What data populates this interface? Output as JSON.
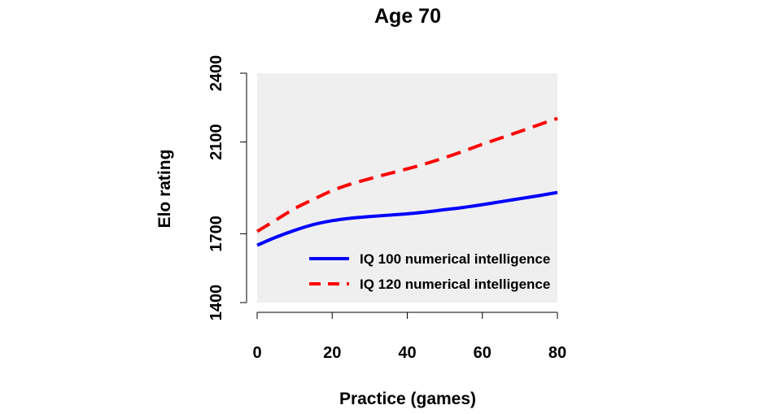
{
  "chart_data": {
    "type": "line",
    "title": "Age 70",
    "xlabel": "Practice (games)",
    "ylabel": "Elo rating",
    "xlim": [
      0,
      80
    ],
    "ylim": [
      1400,
      2400
    ],
    "xticks": [
      0,
      20,
      40,
      60,
      80
    ],
    "yticks": [
      1400,
      1700,
      2100,
      2400
    ],
    "grid": false,
    "background": "#efefef",
    "legend_position": "bottom-right",
    "x": [
      0,
      5,
      10,
      15,
      20,
      25,
      30,
      35,
      40,
      45,
      50,
      55,
      60,
      65,
      70,
      75,
      80
    ],
    "series": [
      {
        "name": "IQ 100 numerical intelligence",
        "color": "#0000ff",
        "line_style": "solid",
        "values": [
          1650,
          1685,
          1715,
          1740,
          1757,
          1768,
          1775,
          1781,
          1787,
          1795,
          1805,
          1815,
          1827,
          1840,
          1853,
          1866,
          1880
        ]
      },
      {
        "name": "IQ 120 numerical intelligence",
        "color": "#ff0000",
        "line_style": "dashed",
        "values": [
          1710,
          1760,
          1810,
          1850,
          1888,
          1917,
          1940,
          1962,
          1983,
          2006,
          2032,
          2060,
          2090,
          2118,
          2146,
          2175,
          2203
        ]
      }
    ]
  }
}
